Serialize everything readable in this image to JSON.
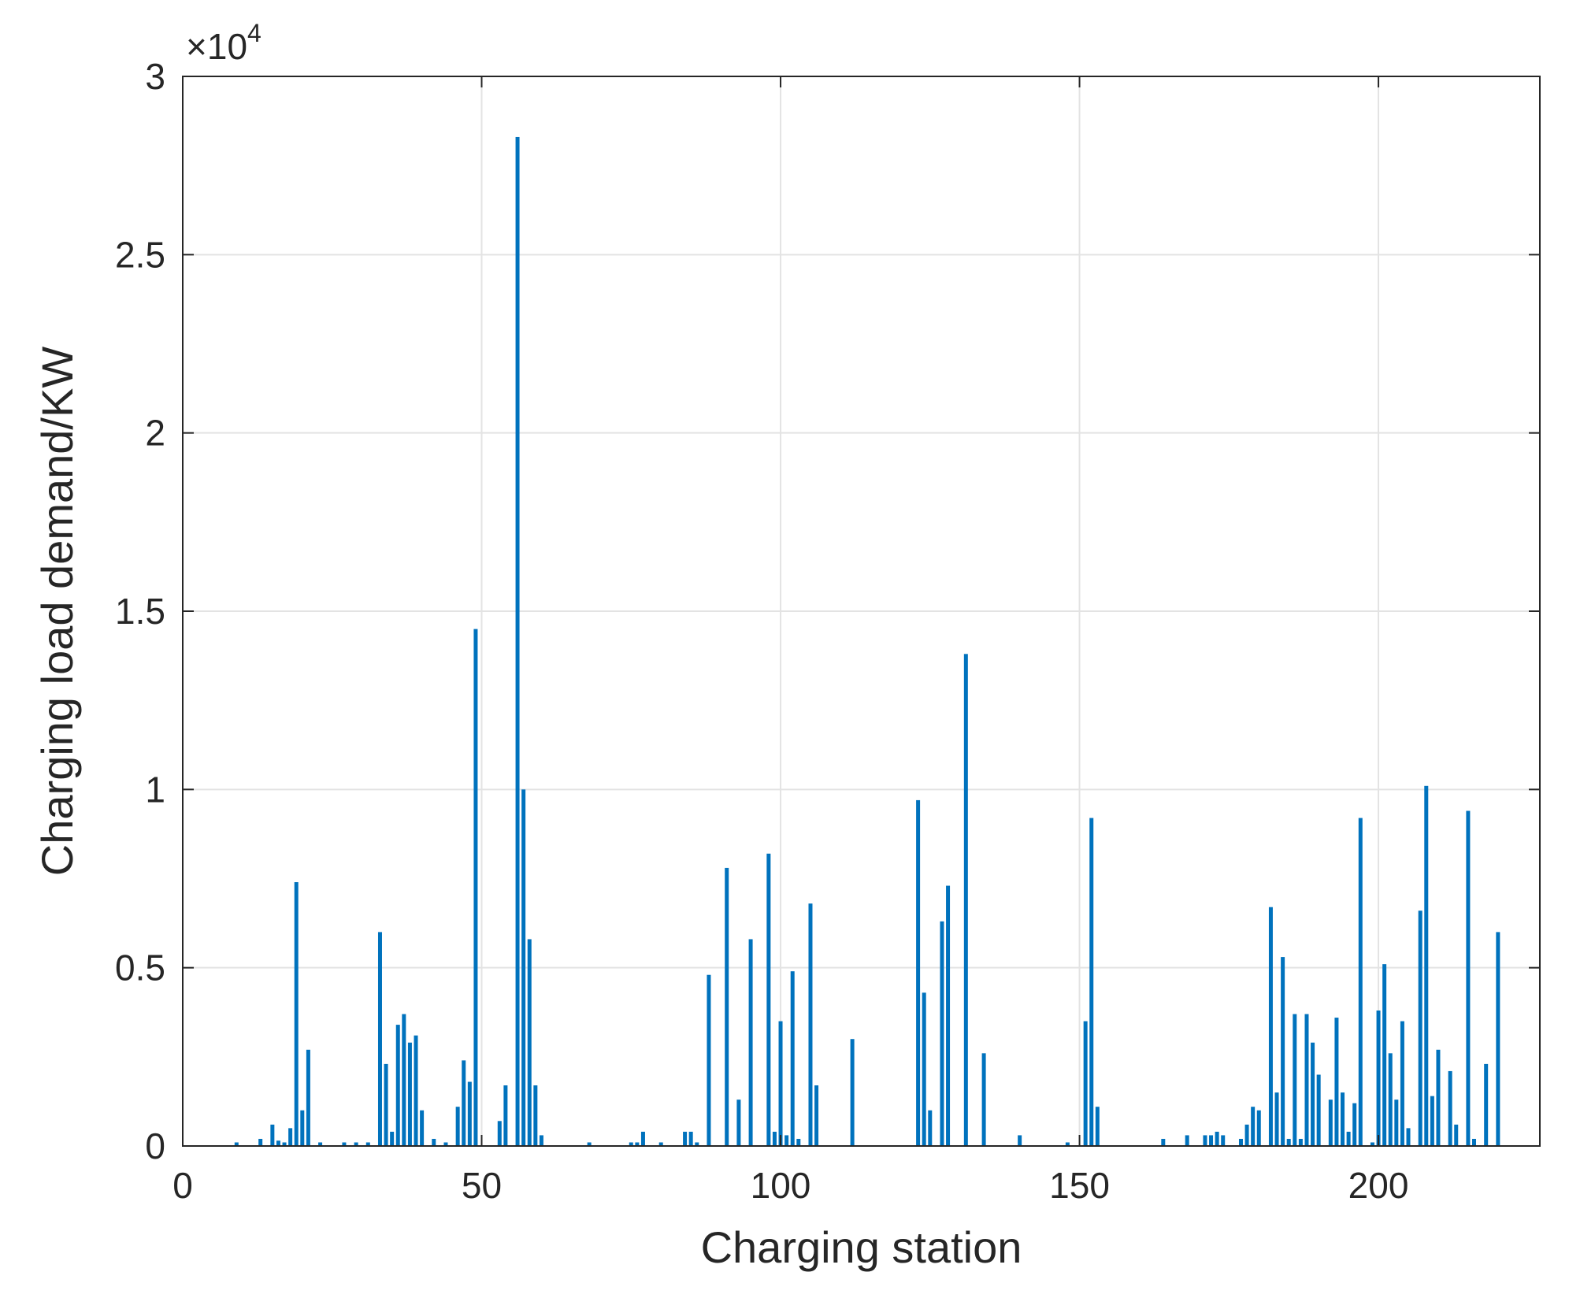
{
  "chart_data": {
    "type": "bar",
    "title": "",
    "xlabel": "Charging station",
    "ylabel": "Charging load demand/KW",
    "y_multiplier": {
      "base": "×10",
      "exponent": "4"
    },
    "xlim": [
      0,
      227
    ],
    "ylim": [
      0,
      30000
    ],
    "x_ticks": [
      0,
      50,
      100,
      150,
      200
    ],
    "x_tick_labels": [
      "0",
      "50",
      "100",
      "150",
      "200"
    ],
    "y_ticks": [
      0,
      5000,
      10000,
      15000,
      20000,
      25000,
      30000
    ],
    "y_tick_labels": [
      "0",
      "0.5",
      "1",
      "1.5",
      "2",
      "2.5",
      "3"
    ],
    "grid": true,
    "bar_color": "#0072BD",
    "x": [
      9,
      13,
      15,
      16,
      17,
      18,
      19,
      20,
      21,
      23,
      27,
      29,
      31,
      33,
      34,
      35,
      36,
      37,
      38,
      39,
      40,
      42,
      44,
      46,
      47,
      48,
      49,
      53,
      54,
      56,
      57,
      58,
      59,
      60,
      68,
      75,
      76,
      77,
      80,
      84,
      85,
      86,
      88,
      91,
      93,
      95,
      98,
      99,
      100,
      101,
      102,
      103,
      105,
      106,
      112,
      123,
      124,
      125,
      127,
      128,
      131,
      134,
      140,
      148,
      151,
      152,
      153,
      164,
      168,
      171,
      172,
      173,
      174,
      177,
      178,
      179,
      180,
      182,
      183,
      184,
      185,
      186,
      187,
      188,
      189,
      190,
      192,
      193,
      194,
      195,
      196,
      197,
      199,
      200,
      201,
      202,
      203,
      204,
      205,
      207,
      208,
      209,
      210,
      212,
      213,
      215,
      216,
      218,
      220
    ],
    "values": [
      100,
      200,
      600,
      150,
      100,
      500,
      7400,
      1000,
      2700,
      100,
      100,
      100,
      100,
      6000,
      2300,
      400,
      3400,
      3700,
      2900,
      3100,
      1000,
      200,
      100,
      1100,
      2400,
      1800,
      14500,
      700,
      1700,
      28300,
      10000,
      5800,
      1700,
      300,
      100,
      100,
      100,
      400,
      100,
      400,
      400,
      100,
      4800,
      7800,
      1300,
      5800,
      8200,
      400,
      3500,
      300,
      4900,
      200,
      6800,
      1700,
      3000,
      9700,
      4300,
      1000,
      6300,
      7300,
      13800,
      2600,
      300,
      100,
      3500,
      9200,
      1100,
      200,
      300,
      300,
      300,
      400,
      300,
      200,
      600,
      1100,
      1000,
      6700,
      1500,
      5300,
      200,
      3700,
      200,
      3700,
      2900,
      2000,
      1300,
      3600,
      1500,
      400,
      1200,
      9200,
      100,
      3800,
      5100,
      2600,
      1300,
      3500,
      500,
      6600,
      10100,
      1400,
      2700,
      2100,
      600,
      9400,
      200,
      2300,
      6000
    ]
  }
}
